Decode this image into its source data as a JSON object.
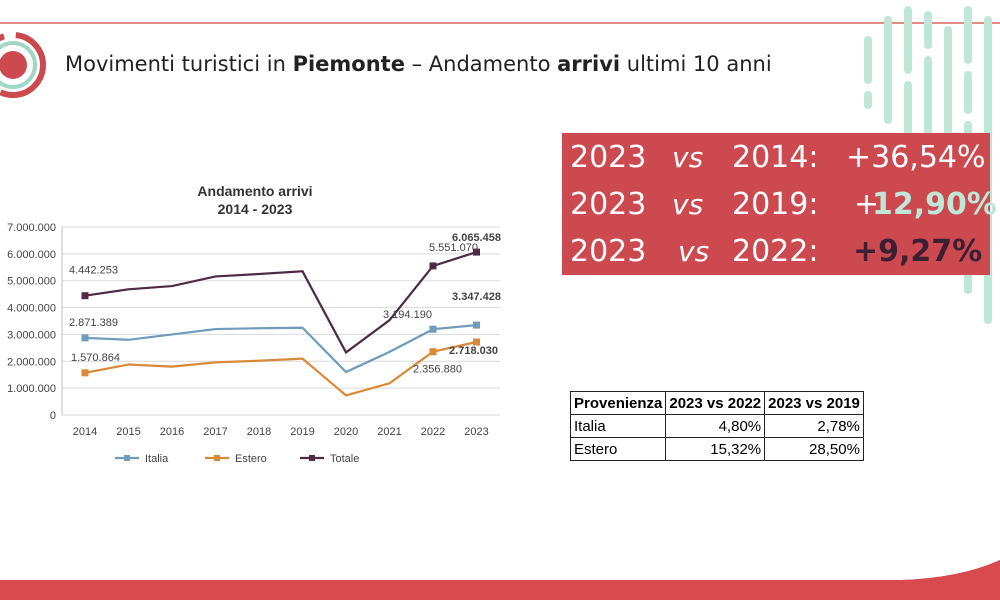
{
  "header": {
    "title_pre": "Movimenti turistici in ",
    "title_bold1": "Piemonte",
    "title_mid": " – Andamento ",
    "title_bold2": "arrivi",
    "title_post": " ultimi 10 anni"
  },
  "comparisons": [
    {
      "year_a": "2023",
      "vs": "vs",
      "year_b": "2014:",
      "value": "+36,54%"
    },
    {
      "year_a": "2023",
      "vs": "vs",
      "year_b": "2019:",
      "value_sign": "+",
      "value": "12,90%"
    },
    {
      "year_a": "2023",
      "vs": "vs",
      "year_b": "2022:",
      "value": "+9,27%"
    }
  ],
  "colors": {
    "banner": "#cc4a4f",
    "italia": "#6f9cbd",
    "estero": "#d8893a",
    "totale": "#4e2b45",
    "accent_green": "#bfe6d6"
  },
  "table": {
    "headers": [
      "Provenienza",
      "2023 vs 2022",
      "2023 vs 2019"
    ],
    "rows": [
      [
        "Italia",
        "4,80%",
        "2,78%"
      ],
      [
        "Estero",
        "15,32%",
        "28,50%"
      ]
    ]
  },
  "chart_data": {
    "type": "line",
    "title": "Andamento arrivi",
    "subtitle": "2014 - 2023",
    "x": [
      "2014",
      "2015",
      "2016",
      "2017",
      "2018",
      "2019",
      "2020",
      "2021",
      "2022",
      "2023"
    ],
    "ylim": [
      0,
      7000000
    ],
    "yticks": [
      "0",
      "1.000.000",
      "2.000.000",
      "3.000.000",
      "4.000.000",
      "5.000.000",
      "6.000.000",
      "7.000.000"
    ],
    "grid": true,
    "legend": "bottom",
    "series": [
      {
        "name": "Italia",
        "color": "#6f9cbd",
        "marker": "square",
        "values": [
          2871389,
          2800000,
          3000000,
          3200000,
          3230000,
          3250000,
          1600000,
          2350000,
          3194190,
          3347428
        ]
      },
      {
        "name": "Estero",
        "color": "#d8893a",
        "marker": "square",
        "values": [
          1570864,
          1880000,
          1800000,
          1960000,
          2020000,
          2100000,
          730000,
          1180000,
          2356880,
          2718030
        ]
      },
      {
        "name": "Totale",
        "color": "#4e2b45",
        "marker": "square",
        "values": [
          4442253,
          4680000,
          4800000,
          5160000,
          5250000,
          5350000,
          2330000,
          3530000,
          5551070,
          6065458
        ]
      }
    ],
    "annotations": [
      {
        "text": "4.442.253",
        "series": "Totale",
        "x": "2014",
        "bold": false
      },
      {
        "text": "2.871.389",
        "series": "Italia",
        "x": "2014",
        "bold": false
      },
      {
        "text": "1.570.864",
        "series": "Estero",
        "x": "2014",
        "bold": false
      },
      {
        "text": "5.551.070",
        "series": "Totale",
        "x": "2022",
        "bold": false
      },
      {
        "text": "3.194.190",
        "series": "Italia",
        "x": "2022",
        "bold": false
      },
      {
        "text": "2.356.880",
        "series": "Estero",
        "x": "2022",
        "bold": false
      },
      {
        "text": "6.065.458",
        "series": "Totale",
        "x": "2023",
        "bold": true
      },
      {
        "text": "3.347.428",
        "series": "Italia",
        "x": "2023",
        "bold": true
      },
      {
        "text": "2.718.030",
        "series": "Estero",
        "x": "2023",
        "bold": true
      }
    ]
  }
}
